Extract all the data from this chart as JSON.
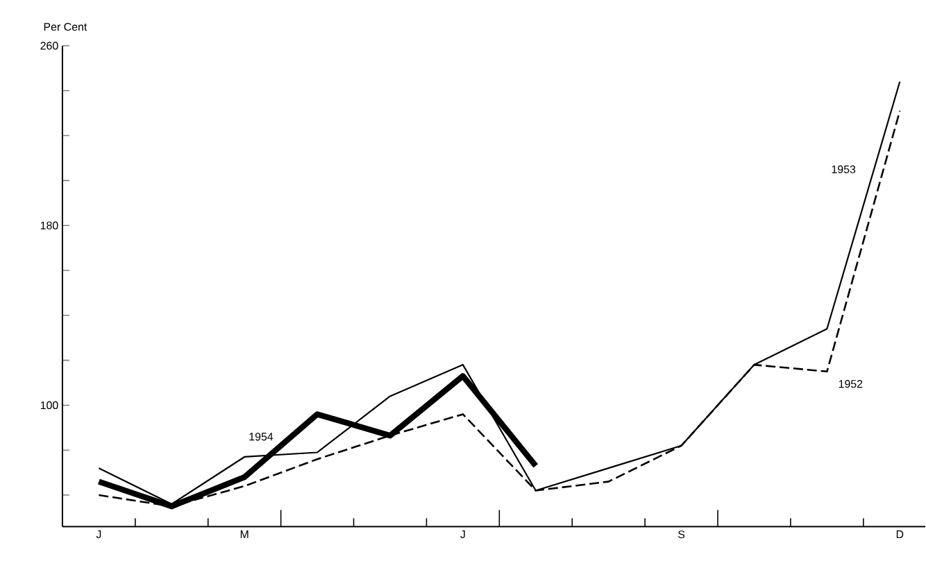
{
  "chart_data": {
    "type": "line",
    "ylabel": "Per Cent",
    "categories": [
      "J",
      null,
      "M",
      null,
      null,
      "J",
      null,
      null,
      "S",
      null,
      null,
      "D"
    ],
    "series": [
      {
        "name": "1954",
        "color": "#000000",
        "line_style": "solid",
        "values": [
          66,
          55,
          68,
          96,
          86.5,
          113,
          73,
          null,
          null,
          null,
          null,
          null
        ]
      },
      {
        "name": "1953",
        "color": "#000000",
        "line_style": "solid",
        "values": [
          72,
          56,
          77,
          79,
          104,
          118,
          62,
          72,
          82,
          118,
          134,
          244
        ]
      },
      {
        "name": "1952",
        "color": "#000000",
        "line_style": "dashed",
        "values": [
          60,
          55,
          64,
          76,
          86.5,
          96,
          62,
          66,
          82,
          118,
          115,
          231
        ]
      }
    ],
    "ylim": [
      46,
      260
    ],
    "yticks": [
      {
        "value": 60,
        "label": null
      },
      {
        "value": 80,
        "label": null
      },
      100,
      {
        "value": 120,
        "label": null
      },
      {
        "value": 140,
        "label": null
      },
      {
        "value": 160,
        "label": null
      },
      180,
      {
        "value": 200,
        "label": null
      },
      {
        "value": 220,
        "label": null
      },
      {
        "value": 240,
        "label": null
      },
      260
    ],
    "grid": false,
    "marker": "none"
  }
}
